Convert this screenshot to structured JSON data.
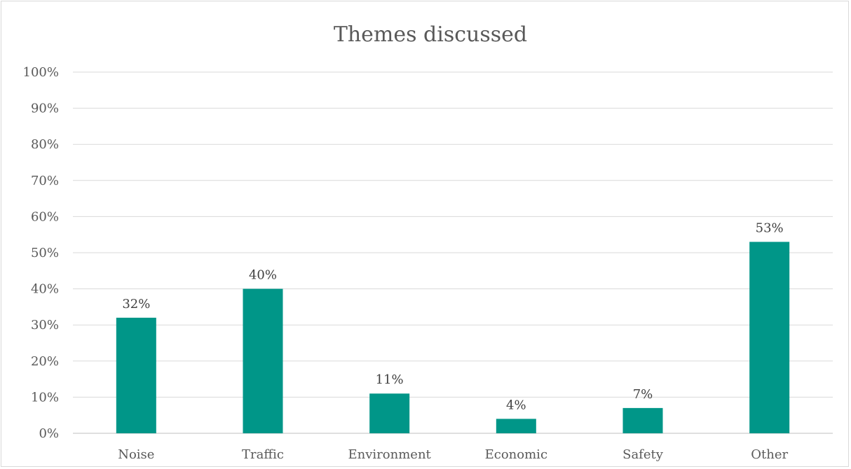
{
  "chart_data": {
    "type": "bar",
    "title": "Themes discussed",
    "categories": [
      "Noise",
      "Traffic",
      "Environment",
      "Economic",
      "Safety",
      "Other"
    ],
    "values": [
      32,
      40,
      11,
      4,
      7,
      53
    ],
    "data_labels": [
      "32%",
      "40%",
      "11%",
      "4%",
      "7%",
      "53%"
    ],
    "ylim": [
      0,
      100
    ],
    "yticks": [
      0,
      10,
      20,
      30,
      40,
      50,
      60,
      70,
      80,
      90,
      100
    ],
    "ytick_labels": [
      "0%",
      "10%",
      "20%",
      "30%",
      "40%",
      "50%",
      "60%",
      "70%",
      "80%",
      "90%",
      "100%"
    ],
    "xlabel": "",
    "ylabel": "",
    "grid": true,
    "legend": "none",
    "bar_color": "#009688"
  }
}
